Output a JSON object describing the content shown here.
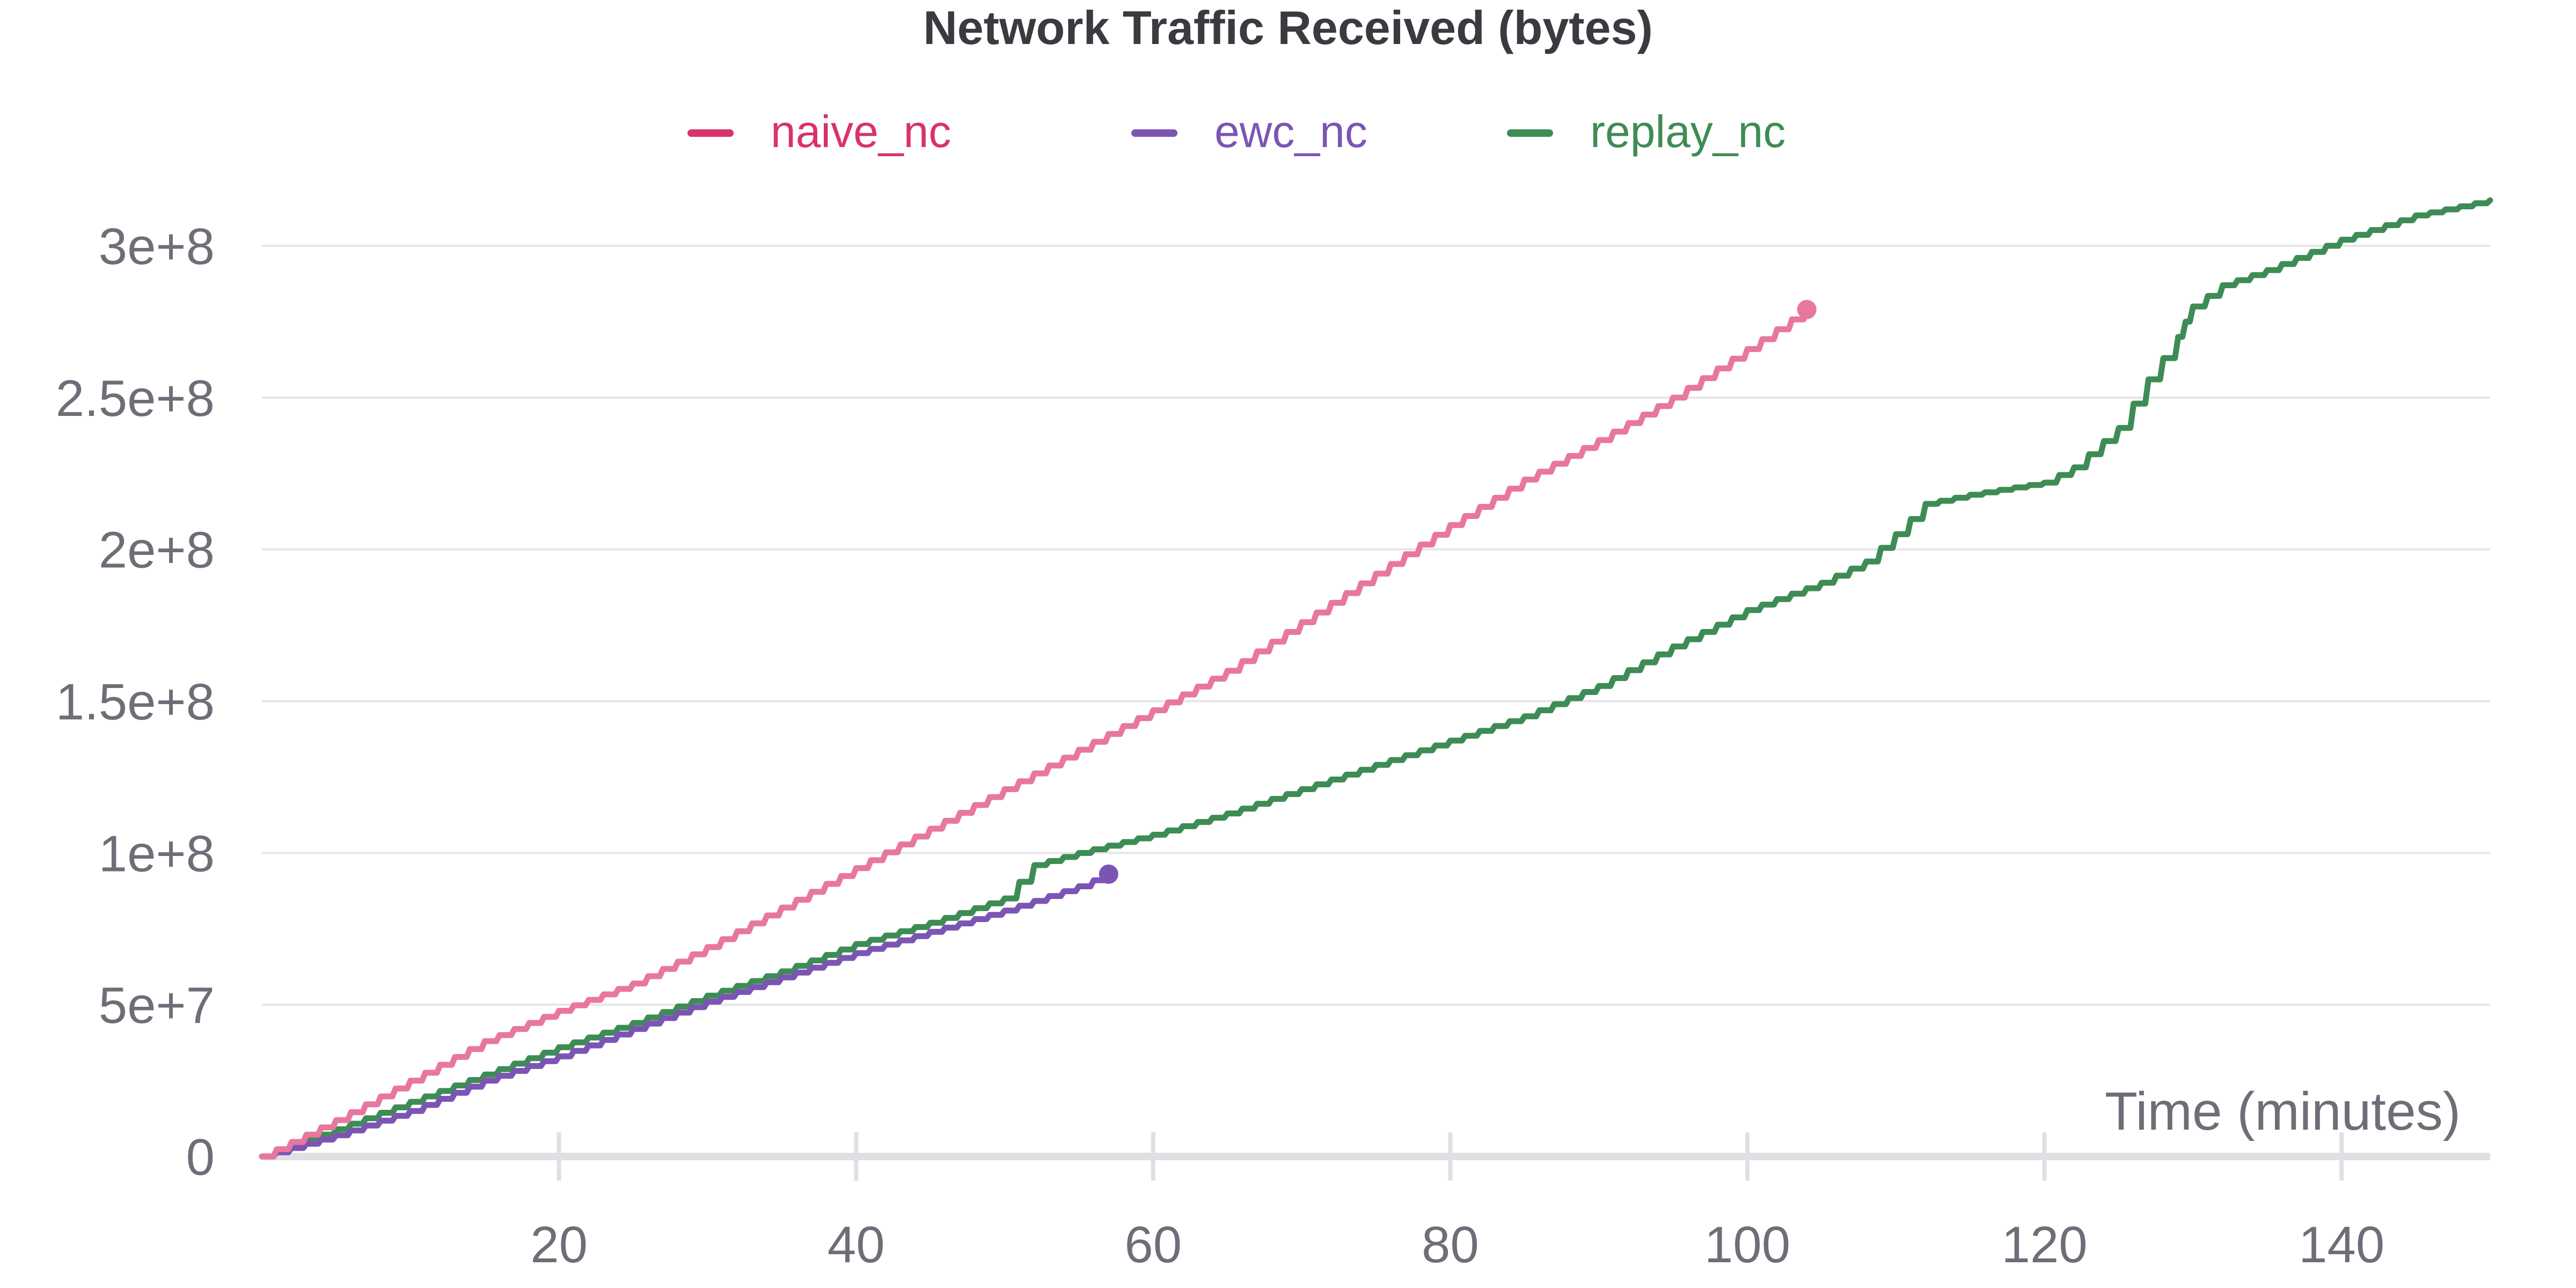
{
  "chart_data": {
    "type": "line",
    "title": "Network Traffic Received (bytes)",
    "xlabel": "Time (minutes)",
    "ylabel": "",
    "xlim": [
      0,
      150
    ],
    "ylim": [
      0,
      300000000
    ],
    "x_ticks": [
      20,
      40,
      60,
      80,
      100,
      120,
      140
    ],
    "x_tick_labels": [
      "20",
      "40",
      "60",
      "80",
      "100",
      "120",
      "140"
    ],
    "y_ticks": [
      0,
      50000000,
      100000000,
      150000000,
      200000000,
      250000000,
      300000000
    ],
    "y_tick_labels": [
      "0",
      "5e+7",
      "1e+8",
      "1.5e+8",
      "2e+8",
      "2.5e+8",
      "3e+8"
    ],
    "grid": true,
    "legend_position": "top-center",
    "series": [
      {
        "name": "naive_nc",
        "color": "#e8779f",
        "legend_color": "#d9326e",
        "end_marker": true,
        "x": [
          0,
          5,
          10,
          15,
          20,
          25,
          30,
          35,
          40,
          45,
          50,
          55,
          60,
          65,
          70,
          75,
          80,
          85,
          90,
          95,
          100,
          104
        ],
        "y": [
          0,
          12000000,
          25000000,
          38000000,
          48000000,
          57000000,
          69000000,
          82000000,
          95000000,
          108000000,
          121000000,
          134000000,
          147000000,
          160000000,
          176000000,
          192000000,
          208000000,
          223000000,
          236000000,
          250000000,
          266000000,
          279000000
        ]
      },
      {
        "name": "ewc_nc",
        "color": "#7c55b4",
        "legend_color": "#7c55b4",
        "end_marker": true,
        "x": [
          0,
          5,
          10,
          15,
          20,
          25,
          30,
          35,
          40,
          45,
          50,
          55,
          57
        ],
        "y": [
          0,
          7000000,
          15000000,
          25000000,
          33000000,
          42000000,
          51000000,
          59000000,
          67000000,
          74000000,
          81000000,
          89000000,
          93000000
        ]
      },
      {
        "name": "replay_nc",
        "color": "#3e8c55",
        "legend_color": "#3e8c55",
        "end_marker": false,
        "x": [
          0,
          5,
          10,
          15,
          20,
          25,
          30,
          35,
          40,
          45,
          50,
          52,
          55,
          60,
          65,
          70,
          75,
          80,
          85,
          90,
          95,
          100,
          105,
          108,
          110,
          112,
          115,
          120,
          122,
          125,
          127,
          129,
          130,
          132,
          135,
          140,
          145,
          150
        ],
        "y": [
          0,
          9000000,
          18000000,
          27000000,
          36000000,
          44000000,
          53000000,
          61000000,
          70000000,
          77000000,
          85000000,
          96000000,
          100000000,
          106000000,
          113000000,
          121000000,
          129000000,
          137000000,
          145000000,
          155000000,
          168000000,
          180000000,
          189000000,
          196000000,
          205000000,
          215000000,
          218000000,
          222000000,
          227000000,
          240000000,
          256000000,
          270000000,
          280000000,
          287000000,
          292000000,
          302000000,
          310000000,
          315000000
        ]
      }
    ]
  }
}
